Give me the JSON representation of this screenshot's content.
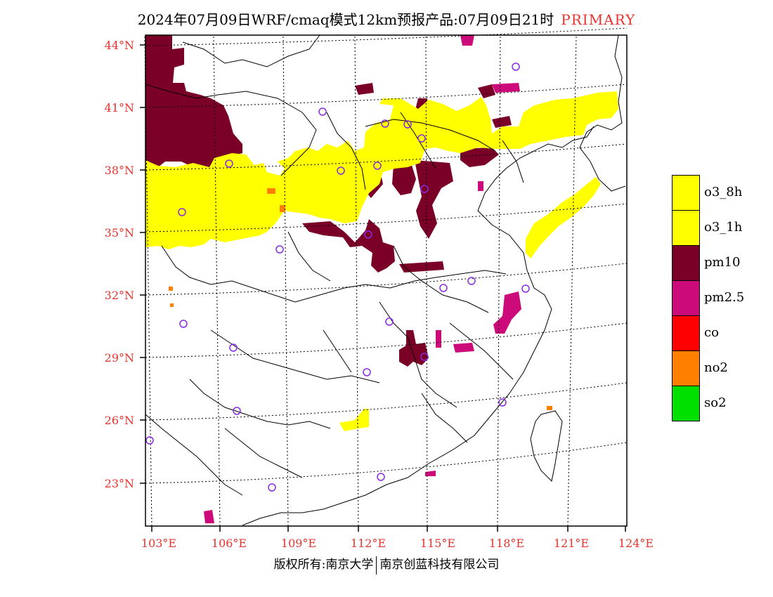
{
  "header": {
    "title": "2024年07月09日WRF/cmaq模式12km预报产品:07月09日21时",
    "tag": "PRIMARY"
  },
  "axes": {
    "lat_labels": [
      "44°N",
      "41°N",
      "38°N",
      "35°N",
      "32°N",
      "29°N",
      "26°N",
      "23°N"
    ],
    "lon_labels": [
      "103°E",
      "106°E",
      "109°E",
      "112°E",
      "115°E",
      "118°E",
      "121°E",
      "124°E"
    ]
  },
  "legend": [
    {
      "label": "o3_8h",
      "color": "#ffff00"
    },
    {
      "label": "o3_1h",
      "color": "#ffff00"
    },
    {
      "label": "pm10",
      "color": "#7a0028"
    },
    {
      "label": "pm2.5",
      "color": "#cc0a7a"
    },
    {
      "label": "co",
      "color": "#ff0000"
    },
    {
      "label": "no2",
      "color": "#ff7f00"
    },
    {
      "label": "so2",
      "color": "#00e000"
    }
  ],
  "footer": {
    "left": "版权所有:南京大学",
    "right": "南京创蓝科技有限公司"
  }
}
